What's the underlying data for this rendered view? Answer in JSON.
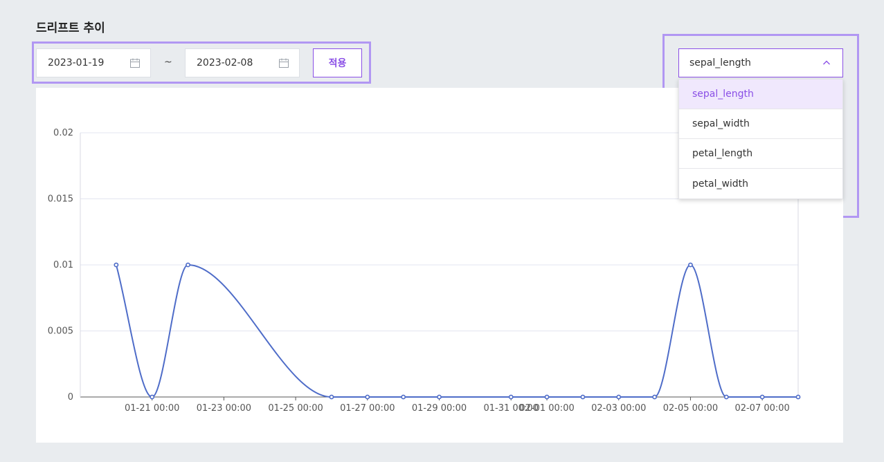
{
  "page": {
    "title": "드리프트 추이"
  },
  "filters": {
    "start_date": "2023-01-19",
    "separator": "~",
    "end_date": "2023-02-08",
    "apply_label": "적용"
  },
  "feature_select": {
    "selected": "sepal_length",
    "options": [
      "sepal_length",
      "sepal_width",
      "petal_length",
      "petal_width"
    ],
    "active_index": 0
  },
  "colors": {
    "accent": "#8a4fe6",
    "line": "#4e6cc8",
    "highlight": "#b197f3"
  },
  "chart_data": {
    "type": "line",
    "title": "",
    "xlabel": "",
    "ylabel": "",
    "ylim": [
      0,
      0.02
    ],
    "yticks": [
      "0",
      "0.005",
      "0.01",
      "0.015",
      "0.02"
    ],
    "xticks": [
      "01-21 00:00",
      "01-23 00:00",
      "01-25 00:00",
      "01-27 00:00",
      "01-29 00:00",
      "01-31 00:00",
      "02-01 00:00",
      "02-03 00:00",
      "02-05 00:00",
      "02-07 00:00"
    ],
    "grid": true,
    "legend": "none",
    "series": [
      {
        "x": [
          "01-20",
          "01-21",
          "01-22",
          "01-26",
          "01-27",
          "01-28",
          "01-29",
          "01-31",
          "02-01",
          "02-02",
          "02-03",
          "02-04",
          "02-05",
          "02-06",
          "02-07",
          "02-08"
        ],
        "values": [
          0.01,
          0,
          0.01,
          0,
          0,
          0,
          0,
          0,
          0,
          0,
          0,
          0,
          0.01,
          0,
          0,
          0
        ]
      }
    ]
  }
}
